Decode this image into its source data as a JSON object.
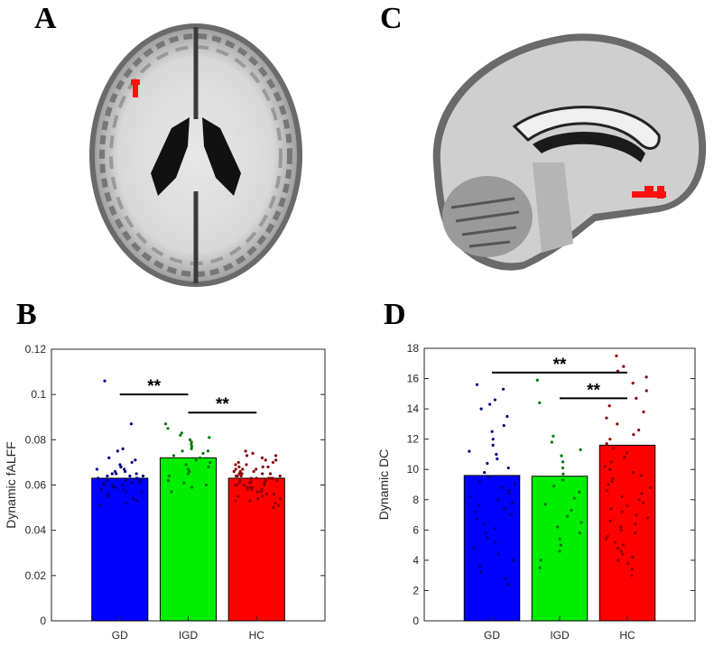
{
  "panels": {
    "a_label": "A",
    "b_label": "B",
    "c_label": "C",
    "d_label": "D"
  },
  "chart_data": [
    {
      "type": "bar",
      "panel": "B",
      "categories": [
        "GD",
        "IGD",
        "HC"
      ],
      "values": [
        0.063,
        0.072,
        0.063
      ],
      "ylabel": "Dynamic fALFF",
      "xlabel": "",
      "ylim": [
        0,
        0.12
      ],
      "yticks": [
        "0",
        "0.02",
        "0.04",
        "0.06",
        "0.08",
        "0.1",
        "0.12"
      ],
      "ytick_values": [
        0,
        0.02,
        0.04,
        0.06,
        0.08,
        0.1,
        0.12
      ],
      "bar_colors": [
        "#0000ff",
        "#00ee00",
        "#ff0000"
      ],
      "dot_colors": [
        "#000080",
        "#007a00",
        "#8b0000"
      ],
      "points": {
        "GD": [
          0.106,
          0.087,
          0.076,
          0.075,
          0.072,
          0.071,
          0.07,
          0.069,
          0.068,
          0.068,
          0.067,
          0.067,
          0.066,
          0.066,
          0.065,
          0.065,
          0.065,
          0.064,
          0.064,
          0.064,
          0.063,
          0.063,
          0.063,
          0.062,
          0.062,
          0.062,
          0.061,
          0.061,
          0.061,
          0.06,
          0.06,
          0.06,
          0.059,
          0.059,
          0.058,
          0.058,
          0.057,
          0.057,
          0.056,
          0.055,
          0.054,
          0.053,
          0.052,
          0.051
        ],
        "IGD": [
          0.087,
          0.085,
          0.083,
          0.082,
          0.081,
          0.08,
          0.079,
          0.078,
          0.077,
          0.076,
          0.075,
          0.075,
          0.074,
          0.073,
          0.072,
          0.071,
          0.07,
          0.069,
          0.068,
          0.067,
          0.066,
          0.065,
          0.064,
          0.062,
          0.061,
          0.06,
          0.059,
          0.057
        ],
        "HC": [
          0.075,
          0.074,
          0.073,
          0.073,
          0.072,
          0.071,
          0.071,
          0.07,
          0.07,
          0.069,
          0.069,
          0.068,
          0.068,
          0.068,
          0.067,
          0.067,
          0.067,
          0.066,
          0.066,
          0.066,
          0.065,
          0.065,
          0.065,
          0.065,
          0.064,
          0.064,
          0.064,
          0.064,
          0.063,
          0.063,
          0.063,
          0.063,
          0.063,
          0.062,
          0.062,
          0.062,
          0.062,
          0.061,
          0.061,
          0.061,
          0.061,
          0.06,
          0.06,
          0.06,
          0.06,
          0.059,
          0.059,
          0.059,
          0.058,
          0.058,
          0.058,
          0.057,
          0.057,
          0.057,
          0.056,
          0.056,
          0.055,
          0.055,
          0.054,
          0.054,
          0.053,
          0.053,
          0.052,
          0.051,
          0.05
        ]
      },
      "significance": [
        {
          "from": "GD",
          "to": "IGD",
          "y": 0.1,
          "label": "**"
        },
        {
          "from": "IGD",
          "to": "HC",
          "y": 0.092,
          "label": "**"
        }
      ]
    },
    {
      "type": "bar",
      "panel": "D",
      "categories": [
        "GD",
        "IGD",
        "HC"
      ],
      "values": [
        9.6,
        9.55,
        11.6
      ],
      "ylabel": "Dynamic DC",
      "xlabel": "",
      "ylim": [
        0,
        18
      ],
      "yticks": [
        "0",
        "2",
        "4",
        "6",
        "8",
        "10",
        "12",
        "14",
        "16",
        "18"
      ],
      "ytick_values": [
        0,
        2,
        4,
        6,
        8,
        10,
        12,
        14,
        16,
        18
      ],
      "bar_colors": [
        "#0000ff",
        "#00ee00",
        "#ff0000"
      ],
      "dot_colors": [
        "#000080",
        "#007a00",
        "#8b0000"
      ],
      "points": {
        "GD": [
          15.6,
          15.3,
          14.6,
          14.3,
          14.0,
          13.5,
          12.9,
          12.5,
          12.0,
          11.6,
          11.2,
          11.0,
          10.7,
          10.4,
          10.1,
          9.8,
          9.5,
          9.2,
          9.0,
          8.8,
          8.6,
          8.4,
          8.2,
          8.0,
          7.8,
          7.6,
          7.4,
          7.2,
          7.0,
          6.7,
          6.4,
          6.1,
          5.8,
          5.5,
          5.2,
          4.8,
          4.4,
          4.0,
          3.6,
          3.2,
          2.8,
          2.4
        ],
        "IGD": [
          15.9,
          14.4,
          12.2,
          11.8,
          11.3,
          10.9,
          10.5,
          10.1,
          9.7,
          9.3,
          8.9,
          8.5,
          8.1,
          7.7,
          7.3,
          6.9,
          6.5,
          6.2,
          5.8,
          5.4,
          5.0,
          4.6,
          4.0,
          3.5
        ],
        "HC": [
          17.5,
          16.8,
          16.5,
          16.1,
          15.7,
          15.2,
          14.7,
          14.2,
          13.8,
          13.4,
          13.0,
          12.6,
          12.3,
          12.0,
          11.7,
          11.4,
          11.1,
          10.8,
          10.5,
          10.2,
          10.0,
          9.8,
          9.6,
          9.4,
          9.2,
          9.0,
          8.8,
          8.6,
          8.4,
          8.2,
          8.0,
          7.8,
          7.6,
          7.4,
          7.2,
          7.0,
          6.8,
          6.6,
          6.4,
          6.2,
          6.0,
          5.8,
          5.6,
          5.4,
          5.2,
          5.0,
          4.8,
          4.6,
          4.4,
          4.2,
          4.0,
          3.8,
          3.4,
          3.0
        ],
        "HC_extra": []
      },
      "significance": [
        {
          "from": "GD",
          "to": "HC",
          "y": 16.4,
          "label": "**"
        },
        {
          "from": "IGD",
          "to": "HC",
          "y": 14.7,
          "label": "**"
        }
      ]
    }
  ]
}
